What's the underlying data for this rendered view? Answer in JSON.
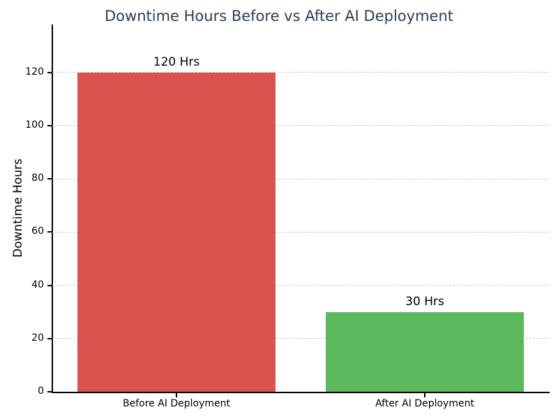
{
  "chart_data": {
    "type": "bar",
    "title": "Downtime Hours Before vs After AI Deployment",
    "xlabel": "",
    "ylabel": "Downtime Hours",
    "categories": [
      "Before AI Deployment",
      "After AI Deployment"
    ],
    "values": [
      120,
      30
    ],
    "value_labels": [
      "120 Hrs",
      "30 Hrs"
    ],
    "bar_colors": [
      "#d9534f",
      "#5cb85c"
    ],
    "yticks": [
      0,
      20,
      40,
      60,
      80,
      100,
      120
    ],
    "ylim": [
      0,
      138
    ],
    "grid": "horizontal-dashed",
    "legend": "none"
  },
  "colors": {
    "title": "#2c3e50",
    "axis": "#000000",
    "grid": "#c9c9c9",
    "background": "#ffffff"
  }
}
